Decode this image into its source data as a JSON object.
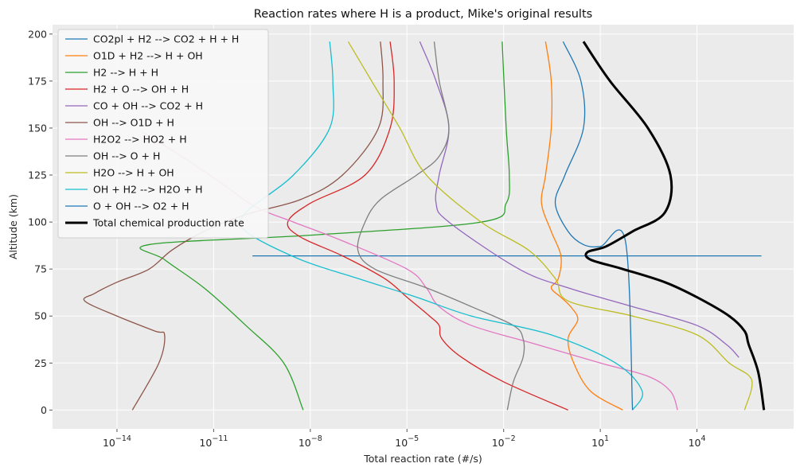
{
  "chart_data": {
    "type": "line",
    "title": "Reaction rates where H is a product, Mike's original results",
    "xlabel": "Total reaction rate (#/s)",
    "ylabel": "Altitude (km)",
    "xscale": "log",
    "xlim": [
      1e-16,
      10000000.0
    ],
    "ylim": [
      -10,
      205
    ],
    "xticks": [
      {
        "value": 1e-14,
        "base": "10",
        "exp": "−14"
      },
      {
        "value": 1e-11,
        "base": "10",
        "exp": "−11"
      },
      {
        "value": 1e-08,
        "base": "10",
        "exp": "−8"
      },
      {
        "value": 1e-05,
        "base": "10",
        "exp": "−5"
      },
      {
        "value": 0.01,
        "base": "10",
        "exp": "−2"
      },
      {
        "value": 10,
        "base": "10",
        "exp": "1"
      },
      {
        "value": 10000,
        "base": "10",
        "exp": "4"
      }
    ],
    "yticks": [
      0,
      25,
      50,
      75,
      100,
      125,
      150,
      175,
      200
    ],
    "grid": true,
    "legend_position": "top-left",
    "series": [
      {
        "name": "CO2pl + H2 --> CO2 + H + H",
        "color": "#1f77b4",
        "width": 1.3,
        "points": [
          [
            1.6e-10,
            82
          ],
          [
            1000000.0,
            82
          ]
        ]
      },
      {
        "name": "O1D + H2 --> H + OH",
        "color": "#ff7f0e",
        "width": 1.3,
        "points": [
          [
            0.2,
            196
          ],
          [
            0.3,
            175
          ],
          [
            0.3,
            150
          ],
          [
            0.2,
            125
          ],
          [
            0.15,
            110
          ],
          [
            0.3,
            95
          ],
          [
            0.6,
            82
          ],
          [
            0.5,
            70
          ],
          [
            0.3,
            65
          ],
          [
            0.6,
            60
          ],
          [
            1.2,
            55
          ],
          [
            2,
            48
          ],
          [
            1,
            38
          ],
          [
            1.5,
            25
          ],
          [
            5,
            10
          ],
          [
            50,
            0
          ]
        ]
      },
      {
        "name": "H2 --> H + H",
        "color": "#2ca02c",
        "width": 1.3,
        "points": [
          [
            0.009,
            196
          ],
          [
            0.012,
            150
          ],
          [
            0.015,
            125
          ],
          [
            0.012,
            110
          ],
          [
            0.002,
            100
          ],
          [
            1e-08,
            93
          ],
          [
            1e-13,
            88
          ],
          [
            3e-13,
            80
          ],
          [
            5e-12,
            65
          ],
          [
            1e-10,
            45
          ],
          [
            1.5e-09,
            25
          ],
          [
            6e-09,
            0
          ]
        ]
      },
      {
        "name": "H2 + O --> OH + H",
        "color": "#d62728",
        "width": 1.3,
        "points": [
          [
            3e-06,
            196
          ],
          [
            4e-06,
            175
          ],
          [
            3e-06,
            150
          ],
          [
            5e-07,
            125
          ],
          [
            1e-08,
            110
          ],
          [
            2e-09,
            100
          ],
          [
            5e-09,
            92
          ],
          [
            1e-07,
            82
          ],
          [
            2e-06,
            70
          ],
          [
            1e-05,
            60
          ],
          [
            5e-05,
            50
          ],
          [
            0.0001,
            45
          ],
          [
            0.00012,
            38
          ],
          [
            0.0005,
            28
          ],
          [
            0.01,
            15
          ],
          [
            1,
            0
          ]
        ]
      },
      {
        "name": "CO + OH --> CO2 + H",
        "color": "#9467bd",
        "width": 1.3,
        "points": [
          [
            2.5e-05,
            196
          ],
          [
            8e-05,
            175
          ],
          [
            0.0002,
            150
          ],
          [
            0.0001,
            125
          ],
          [
            8e-05,
            110
          ],
          [
            0.0002,
            100
          ],
          [
            0.03,
            75
          ],
          [
            1,
            65
          ],
          [
            100,
            55
          ],
          [
            10000.0,
            45
          ],
          [
            80000.0,
            35
          ],
          [
            200000.0,
            28
          ]
        ]
      },
      {
        "name": "OH --> O1D + H",
        "color": "#8c564b",
        "width": 1.3,
        "points": [
          [
            1.5e-06,
            196
          ],
          [
            1.8e-06,
            175
          ],
          [
            1.3e-06,
            150
          ],
          [
            1e-07,
            125
          ],
          [
            5e-09,
            112
          ],
          [
            1e-10,
            104
          ],
          [
            5e-12,
            95
          ],
          [
            5e-13,
            85
          ],
          [
            1e-13,
            75
          ],
          [
            1e-14,
            68
          ],
          [
            2e-15,
            62
          ],
          [
            1e-15,
            58
          ],
          [
            1e-14,
            50
          ],
          [
            1.5e-13,
            42
          ],
          [
            3e-13,
            40
          ],
          [
            2e-13,
            25
          ],
          [
            3e-14,
            0
          ]
        ]
      },
      {
        "name": "H2O2 --> HO2 + H",
        "color": "#e377c2",
        "width": 1.3,
        "points": [
          [
            6e-14,
            148
          ],
          [
            1e-12,
            135
          ],
          [
            2e-11,
            120
          ],
          [
            2e-10,
            108
          ],
          [
            3e-09,
            100
          ],
          [
            1e-07,
            90
          ],
          [
            1e-05,
            75
          ],
          [
            4e-05,
            65
          ],
          [
            0.0001,
            55
          ],
          [
            0.001,
            45
          ],
          [
            0.1,
            35
          ],
          [
            10,
            25
          ],
          [
            300,
            18
          ],
          [
            1500,
            10
          ],
          [
            2500,
            0
          ]
        ]
      },
      {
        "name": "OH --> O + H",
        "color": "#7f7f7f",
        "width": 1.3,
        "points": [
          [
            7e-05,
            196
          ],
          [
            0.0001,
            175
          ],
          [
            0.0002,
            150
          ],
          [
            0.0001,
            135
          ],
          [
            2e-05,
            125
          ],
          [
            1.5e-06,
            112
          ],
          [
            5e-07,
            100
          ],
          [
            3e-07,
            85
          ],
          [
            1e-06,
            75
          ],
          [
            4e-05,
            65
          ],
          [
            0.001,
            55
          ],
          [
            0.02,
            45
          ],
          [
            0.04,
            38
          ],
          [
            0.04,
            28
          ],
          [
            0.02,
            15
          ],
          [
            0.013,
            0
          ]
        ]
      },
      {
        "name": "H2O --> H + OH",
        "color": "#bcbd22",
        "width": 1.3,
        "points": [
          [
            1.5e-07,
            196
          ],
          [
            8e-07,
            175
          ],
          [
            6e-06,
            150
          ],
          [
            4e-05,
            125
          ],
          [
            0.002,
            100
          ],
          [
            0.06,
            85
          ],
          [
            0.4,
            70
          ],
          [
            1,
            58
          ],
          [
            100,
            50
          ],
          [
            10000.0,
            40
          ],
          [
            100000.0,
            25
          ],
          [
            500000.0,
            16
          ],
          [
            300000.0,
            0
          ]
        ]
      },
      {
        "name": "OH + H2 --> H2O + H",
        "color": "#17becf",
        "width": 1.3,
        "points": [
          [
            4e-08,
            196
          ],
          [
            5e-08,
            175
          ],
          [
            4e-08,
            150
          ],
          [
            3e-09,
            125
          ],
          [
            1e-10,
            105
          ],
          [
            1e-10,
            95
          ],
          [
            5e-09,
            80
          ],
          [
            3e-07,
            70
          ],
          [
            2e-05,
            60
          ],
          [
            0.001,
            50
          ],
          [
            0.3,
            40
          ],
          [
            30,
            25
          ],
          [
            200,
            10
          ],
          [
            100,
            0
          ]
        ]
      },
      {
        "name": "O + OH --> O2 + H",
        "color": "#1f77b4",
        "width": 1.3,
        "points": [
          [
            0.7,
            196
          ],
          [
            2.5,
            175
          ],
          [
            3,
            150
          ],
          [
            0.8,
            125
          ],
          [
            0.4,
            110
          ],
          [
            1,
            95
          ],
          [
            3,
            88
          ],
          [
            10,
            87
          ],
          [
            60,
            90
          ],
          [
            100,
            0
          ]
        ]
      },
      {
        "name": "Total chemical production rate",
        "color": "#000000",
        "width": 3,
        "points": [
          [
            3,
            196
          ],
          [
            20,
            175
          ],
          [
            300,
            150
          ],
          [
            1500,
            125
          ],
          [
            1000,
            105
          ],
          [
            100,
            95
          ],
          [
            15,
            87
          ],
          [
            4,
            84
          ],
          [
            5,
            80
          ],
          [
            50,
            75
          ],
          [
            1000.0,
            68
          ],
          [
            10000.0,
            60
          ],
          [
            100000.0,
            50
          ],
          [
            300000.0,
            42
          ],
          [
            400000.0,
            35
          ],
          [
            800000.0,
            20
          ],
          [
            1200000.0,
            0
          ]
        ]
      }
    ]
  }
}
